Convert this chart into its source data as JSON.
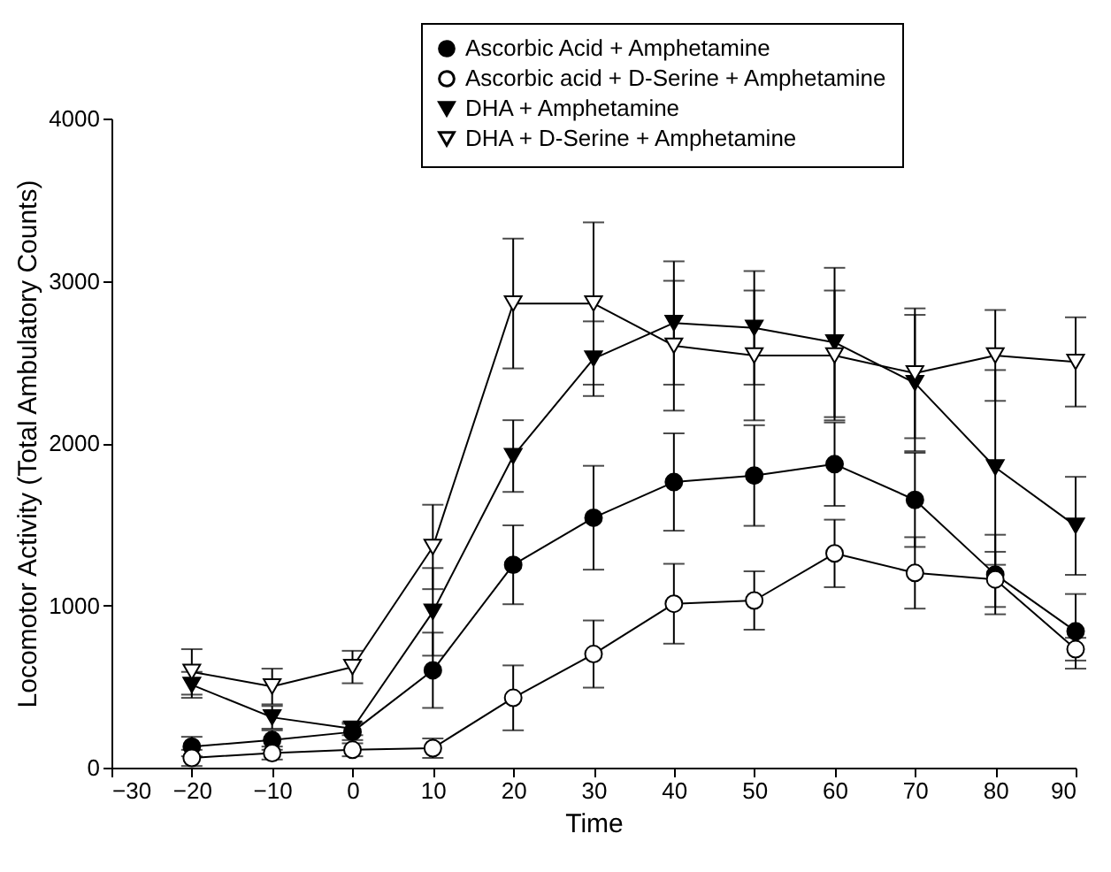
{
  "chart_data": {
    "type": "line",
    "xlabel": "Time",
    "ylabel": "Locomotor Activity (Total Ambulatory Counts)",
    "x": [
      -20,
      -10,
      0,
      10,
      20,
      30,
      40,
      50,
      60,
      70,
      80,
      90
    ],
    "xlim": [
      -30,
      90
    ],
    "xticks": [
      -30,
      -20,
      -10,
      0,
      10,
      20,
      30,
      40,
      50,
      60,
      70,
      80,
      90
    ],
    "ylim": [
      0,
      4000
    ],
    "yticks": [
      0,
      1000,
      2000,
      3000,
      4000
    ],
    "grid": false,
    "legend": "top right",
    "line_style": "solid",
    "series": [
      {
        "name": "Ascorbic Acid + Amphetamine",
        "color": "#000000",
        "marker": "circle",
        "values": [
          130,
          170,
          220,
          600,
          1250,
          1540,
          1760,
          1800,
          1870,
          1650,
          1190,
          840
        ],
        "errors": [
          60,
          60,
          50,
          232,
          243,
          320,
          300,
          310,
          257,
          290,
          245,
          230
        ]
      },
      {
        "name": "Ascorbic acid + D-Serine + Amphetamine",
        "color": "#000000",
        "marker": "circle-open",
        "values": [
          60,
          90,
          110,
          120,
          430,
          700,
          1010,
          1030,
          1320,
          1200,
          1160,
          730
        ],
        "errors": [
          50,
          40,
          40,
          60,
          200,
          207,
          246,
          180,
          208,
          220,
          170,
          70
        ]
      },
      {
        "name": "DHA + Amphetamine",
        "color": "#000000",
        "marker": "triangle-down",
        "values": [
          510,
          310,
          240,
          960,
          1920,
          2520,
          2740,
          2710,
          2620,
          2370,
          1850,
          1490
        ],
        "errors": [
          80,
          70,
          40,
          270,
          221,
          230,
          380,
          350,
          460,
          420,
          600,
          302
        ]
      },
      {
        "name": "DHA + D-Serine + Amphetamine",
        "color": "#000000",
        "marker": "triangle-down-open",
        "values": [
          590,
          500,
          620,
          1360,
          2860,
          2860,
          2600,
          2540,
          2540,
          2430,
          2540,
          2500
        ],
        "errors": [
          140,
          110,
          100,
          260,
          400,
          500,
          400,
          400,
          400,
          400,
          280,
          275
        ]
      }
    ]
  }
}
